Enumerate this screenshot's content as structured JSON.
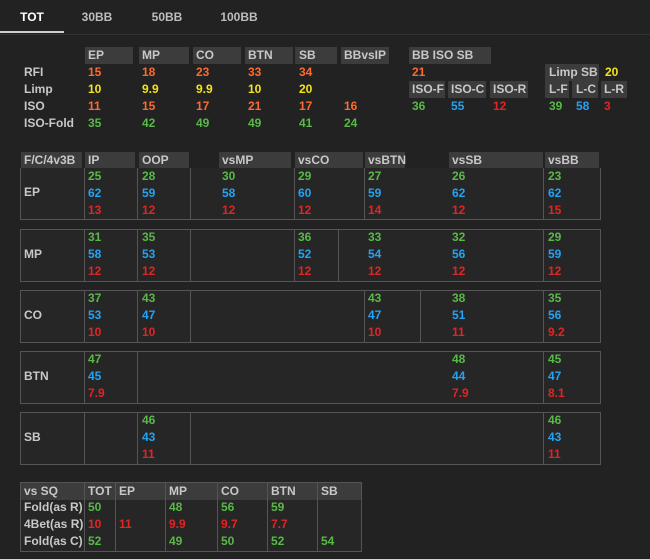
{
  "tabs": [
    "TOT",
    "30BB",
    "50BB",
    "100BB"
  ],
  "rfi": {
    "headers": [
      "EP",
      "MP",
      "CO",
      "BTN",
      "SB",
      "BBvsIP",
      "BB ISO SB"
    ],
    "rows": [
      {
        "label": "RFI",
        "values": [
          "15",
          "18",
          "23",
          "33",
          "34",
          "",
          "21"
        ]
      },
      {
        "label": "Limp",
        "values": [
          "10",
          "9.9",
          "9.9",
          "10",
          "20"
        ]
      },
      {
        "label": "ISO",
        "values": [
          "11",
          "15",
          "17",
          "21",
          "17",
          "16"
        ]
      },
      {
        "label": "ISO-Fold",
        "values": [
          "35",
          "42",
          "49",
          "49",
          "41",
          "24"
        ]
      }
    ],
    "iso_headers": [
      "ISO-F",
      "ISO-C",
      "ISO-R"
    ],
    "iso_values": [
      "36",
      "55",
      "12"
    ],
    "limp_sb_label": "Limp SB",
    "limp_sb_value": "20",
    "limp_headers": [
      "L-F",
      "L-C",
      "L-R"
    ],
    "limp_values": [
      "39",
      "58",
      "3"
    ]
  },
  "fc4v3b": {
    "corner": "F/C/4v3B",
    "headers": [
      "IP",
      "OOP",
      "vsMP",
      "vsCO",
      "vsBTN",
      "vsSB",
      "vsBB"
    ],
    "rows": [
      {
        "label": "EP",
        "cols": [
          [
            "25",
            "62",
            "13"
          ],
          [
            "28",
            "59",
            "12"
          ],
          [
            "30",
            "58",
            "12"
          ],
          [
            "29",
            "60",
            "12"
          ],
          [
            "27",
            "59",
            "14"
          ],
          [
            "26",
            "62",
            "12"
          ],
          [
            "23",
            "62",
            "15"
          ]
        ]
      },
      {
        "label": "MP",
        "cols": [
          [
            "31",
            "58",
            "12"
          ],
          [
            "35",
            "53",
            "12"
          ],
          null,
          [
            "36",
            "52",
            "12"
          ],
          [
            "33",
            "54",
            "12"
          ],
          [
            "32",
            "56",
            "12"
          ],
          [
            "29",
            "59",
            "12"
          ]
        ]
      },
      {
        "label": "CO",
        "cols": [
          [
            "37",
            "53",
            "10"
          ],
          [
            "43",
            "47",
            "10"
          ],
          null,
          null,
          [
            "43",
            "47",
            "10"
          ],
          [
            "38",
            "51",
            "11"
          ],
          [
            "35",
            "56",
            "9.2"
          ]
        ]
      },
      {
        "label": "BTN",
        "cols": [
          [
            "47",
            "45",
            "7.9"
          ],
          null,
          null,
          null,
          null,
          [
            "48",
            "44",
            "7.9"
          ],
          [
            "45",
            "47",
            "8.1"
          ]
        ]
      },
      {
        "label": "SB",
        "cols": [
          null,
          [
            "46",
            "43",
            "11"
          ],
          null,
          null,
          null,
          null,
          [
            "46",
            "43",
            "11"
          ]
        ]
      }
    ]
  },
  "vssq": {
    "corner": "vs SQ",
    "headers": [
      "TOT",
      "EP",
      "MP",
      "CO",
      "BTN",
      "SB"
    ],
    "rows": [
      {
        "label": "Fold(as R)",
        "values": [
          "50",
          "",
          "48",
          "56",
          "59",
          ""
        ]
      },
      {
        "label": "4Bet(as R)",
        "values": [
          "10",
          "11",
          "9.9",
          "9.7",
          "7.7",
          ""
        ]
      },
      {
        "label": "Fold(as C)",
        "values": [
          "52",
          "",
          "49",
          "50",
          "52",
          "54"
        ]
      }
    ]
  },
  "colors": {
    "orange": "#ff6a2c",
    "yellow": "#f5e31d",
    "green": "#58b947",
    "blue": "#23a3f2",
    "red": "#e32424"
  }
}
